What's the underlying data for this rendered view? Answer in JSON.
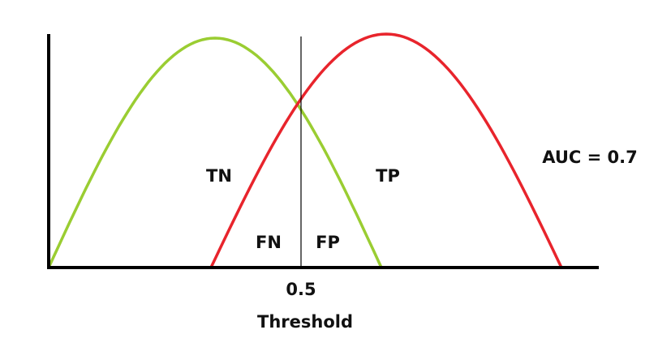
{
  "regions": {
    "true_negative": "TN",
    "true_positive": "TP",
    "false_negative": "FN",
    "false_positive": "FP"
  },
  "annotation": "AUC = 0.7",
  "threshold": {
    "value": "0.5",
    "label": "Threshold"
  }
}
